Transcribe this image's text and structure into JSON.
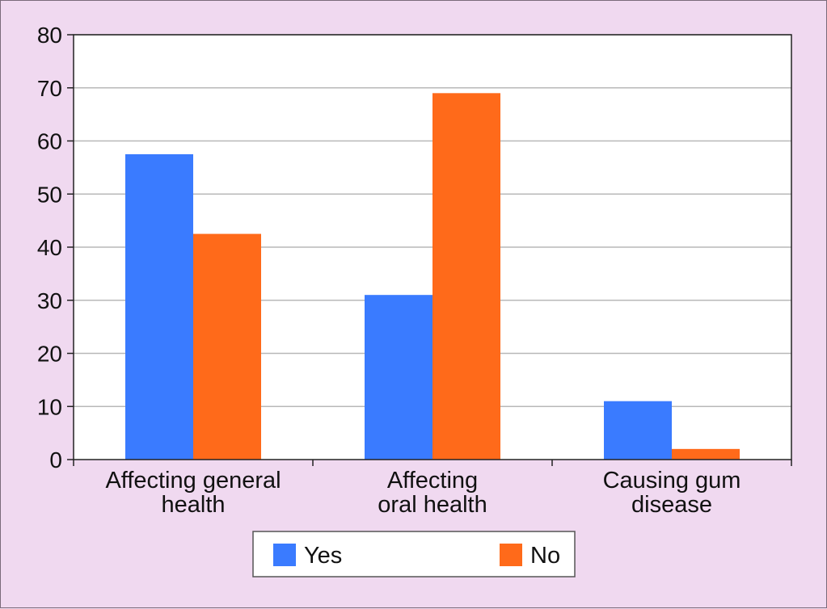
{
  "chart_data": {
    "type": "bar",
    "categories": [
      [
        "Affecting general",
        "health"
      ],
      [
        "Affecting",
        "oral health"
      ],
      [
        "Causing gum",
        "disease"
      ]
    ],
    "series": [
      {
        "name": "Yes",
        "color": "#3a7bff",
        "values": [
          57.5,
          31,
          11
        ]
      },
      {
        "name": "No",
        "color": "#ff6a1a",
        "values": [
          42.5,
          69,
          2
        ]
      }
    ],
    "ylim": [
      0,
      80
    ],
    "yticks": [
      0,
      10,
      20,
      30,
      40,
      50,
      60,
      70,
      80
    ],
    "grid": true,
    "legend_position": "bottom-center"
  }
}
